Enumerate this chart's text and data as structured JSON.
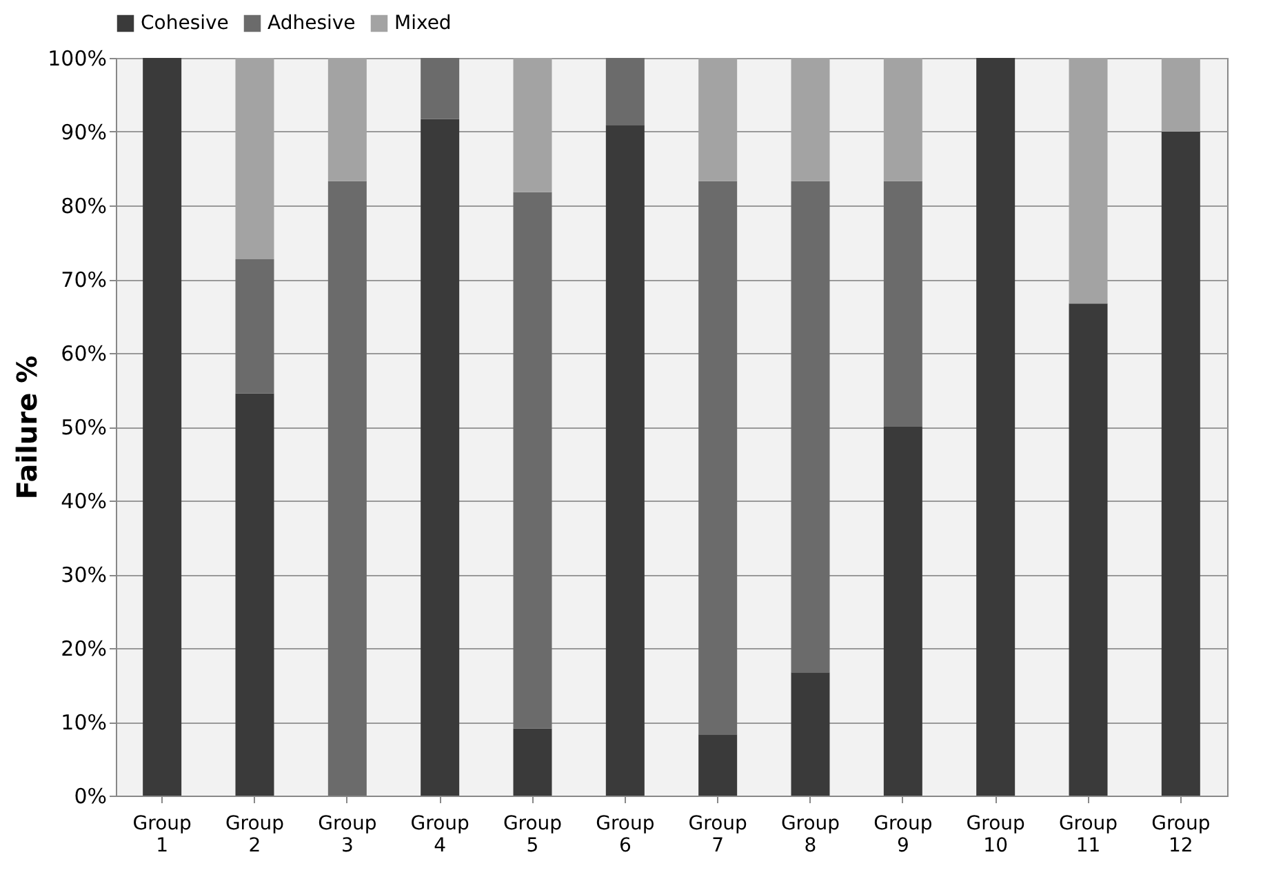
{
  "chart_data": {
    "type": "bar",
    "stacked": true,
    "ylabel": "Failure %",
    "categories": [
      "Group 1",
      "Group 2",
      "Group 3",
      "Group 4",
      "Group 5",
      "Group 6",
      "Group 7",
      "Group 8",
      "Group 9",
      "Group 10",
      "Group 11",
      "Group 12"
    ],
    "series": [
      {
        "name": "Cohesive",
        "color": "#3a3a3a",
        "values": [
          100,
          54.5,
          0,
          91.7,
          9.1,
          90.9,
          8.3,
          16.7,
          50,
          100,
          66.7,
          90
        ]
      },
      {
        "name": "Adhesive",
        "color": "#6b6b6b",
        "values": [
          0,
          18.2,
          83.3,
          8.3,
          72.7,
          9.1,
          75,
          66.6,
          33.3,
          0,
          0,
          0
        ]
      },
      {
        "name": "Mixed",
        "color": "#a3a3a3",
        "values": [
          0,
          27.3,
          16.7,
          0,
          18.2,
          0,
          16.7,
          16.7,
          16.7,
          0,
          33.3,
          10
        ]
      }
    ],
    "ylim": [
      0,
      100
    ],
    "yticks": [
      {
        "value": 0,
        "label": "0%"
      },
      {
        "value": 10,
        "label": "10%"
      },
      {
        "value": 20,
        "label": "20%"
      },
      {
        "value": 30,
        "label": "30%"
      },
      {
        "value": 40,
        "label": "40%"
      },
      {
        "value": 50,
        "label": "50%"
      },
      {
        "value": 60,
        "label": "60%"
      },
      {
        "value": 70,
        "label": "70%"
      },
      {
        "value": 80,
        "label": "80%"
      },
      {
        "value": 90,
        "label": "90%"
      },
      {
        "value": 100,
        "label": "100%"
      }
    ],
    "grid": "y",
    "legend": "top"
  }
}
